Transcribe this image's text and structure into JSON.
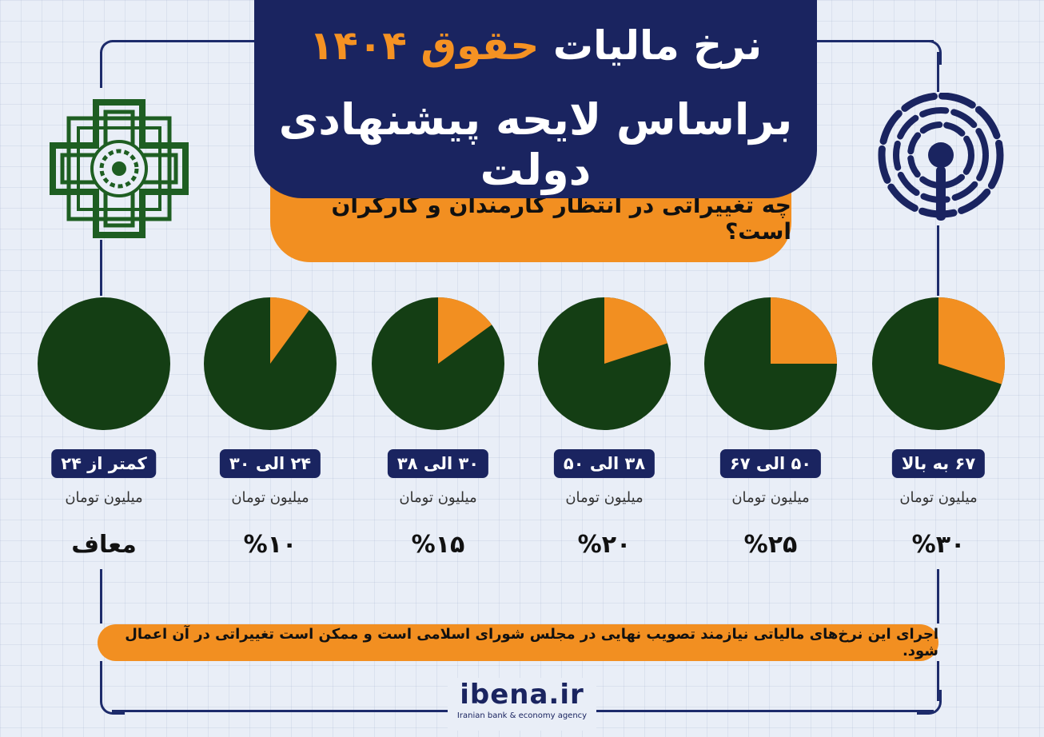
{
  "header": {
    "title_part1": "نرخ مالیات ",
    "title_highlight": "حقوق ۱۴۰۴",
    "title_line2": "براساس لایحه پیشنهادی دولت",
    "subtitle": "چه تغییراتی در انتظار کارمندان و کارگران است؟"
  },
  "colors": {
    "navy": "#1a2460",
    "orange": "#f28f21",
    "pie_green": "#143e14",
    "background": "#e9eef7"
  },
  "chart_data": {
    "type": "pie",
    "unit_label": "میلیون تومان",
    "brackets": [
      {
        "range": "۶۷ به بالا",
        "unit": "میلیون تومان",
        "rate_label": "%۳۰",
        "rate": 30
      },
      {
        "range": "۵۰ الی ۶۷",
        "unit": "میلیون تومان",
        "rate_label": "%۲۵",
        "rate": 25
      },
      {
        "range": "۳۸ الی ۵۰",
        "unit": "میلیون تومان",
        "rate_label": "%۲۰",
        "rate": 20
      },
      {
        "range": "۳۰ الی ۳۸",
        "unit": "میلیون تومان",
        "rate_label": "%۱۵",
        "rate": 15
      },
      {
        "range": "۲۴ الی ۳۰",
        "unit": "میلیون تومان",
        "rate_label": "%۱۰",
        "rate": 10
      },
      {
        "range": "کمتر از ۲۴",
        "unit": "میلیون تومان",
        "rate_label": "معاف",
        "rate": 0
      }
    ]
  },
  "footer": {
    "note": "اجرای این نرخ‌های مالیاتی نیازمند تصویب نهایی در مجلس شورای اسلامی است و ممکن است تغییراتی در آن اعمال شود.",
    "brand_name": "ibena.ir",
    "brand_tagline": "Iranian bank & economy agency"
  },
  "icons": {
    "left": "tax-organization-emblem-icon",
    "right": "signal-antenna-icon"
  }
}
